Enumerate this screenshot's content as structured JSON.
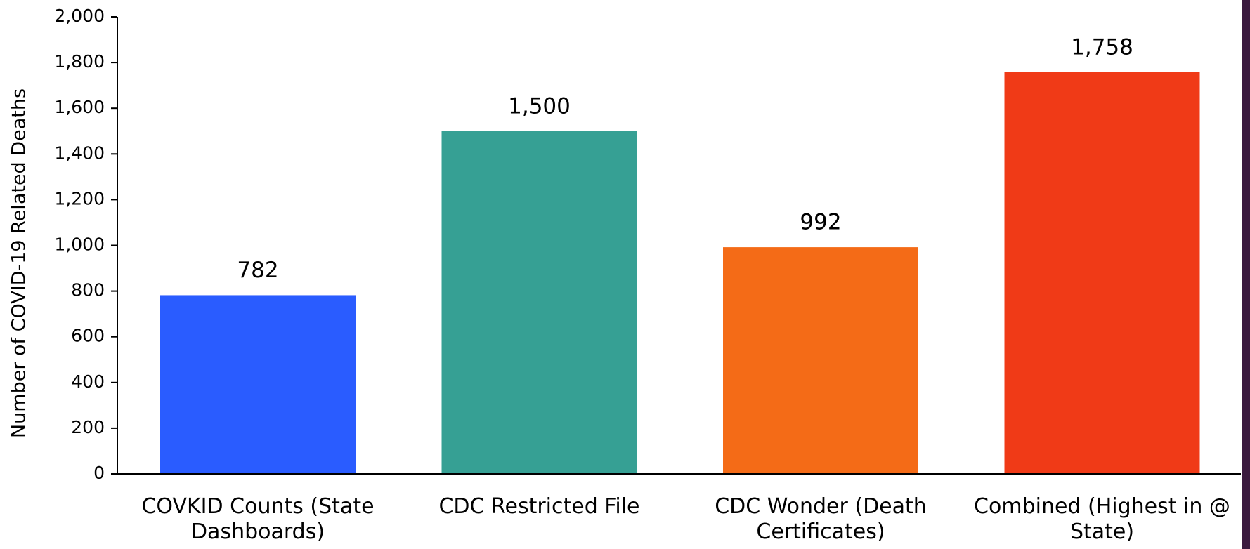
{
  "chart_data": {
    "type": "bar",
    "y_axis_label": "Number of COVID-19 Related Deaths",
    "categories": [
      "COVKID Counts (State Dashboards)",
      "CDC Restricted File",
      "CDC Wonder (Death Certificates)",
      "Combined (Highest in @ State)"
    ],
    "values": [
      782,
      1500,
      992,
      1758
    ],
    "value_labels": [
      "782",
      "1,500",
      "992",
      "1,758"
    ],
    "colors": [
      "#2a5cff",
      "#36a094",
      "#f46b17",
      "#f03a17"
    ],
    "ylim": [
      0,
      2000
    ],
    "yticks": [
      0,
      200,
      400,
      600,
      800,
      {
        "value": 1000,
        "label": "1,000"
      },
      {
        "value": 1200,
        "label": "1,200"
      },
      {
        "value": 1400,
        "label": "1,400"
      },
      {
        "value": 1600,
        "label": "1,600"
      },
      {
        "value": 1800,
        "label": "1,800"
      },
      {
        "value": 2000,
        "label": "2,000"
      }
    ],
    "grid": false
  }
}
